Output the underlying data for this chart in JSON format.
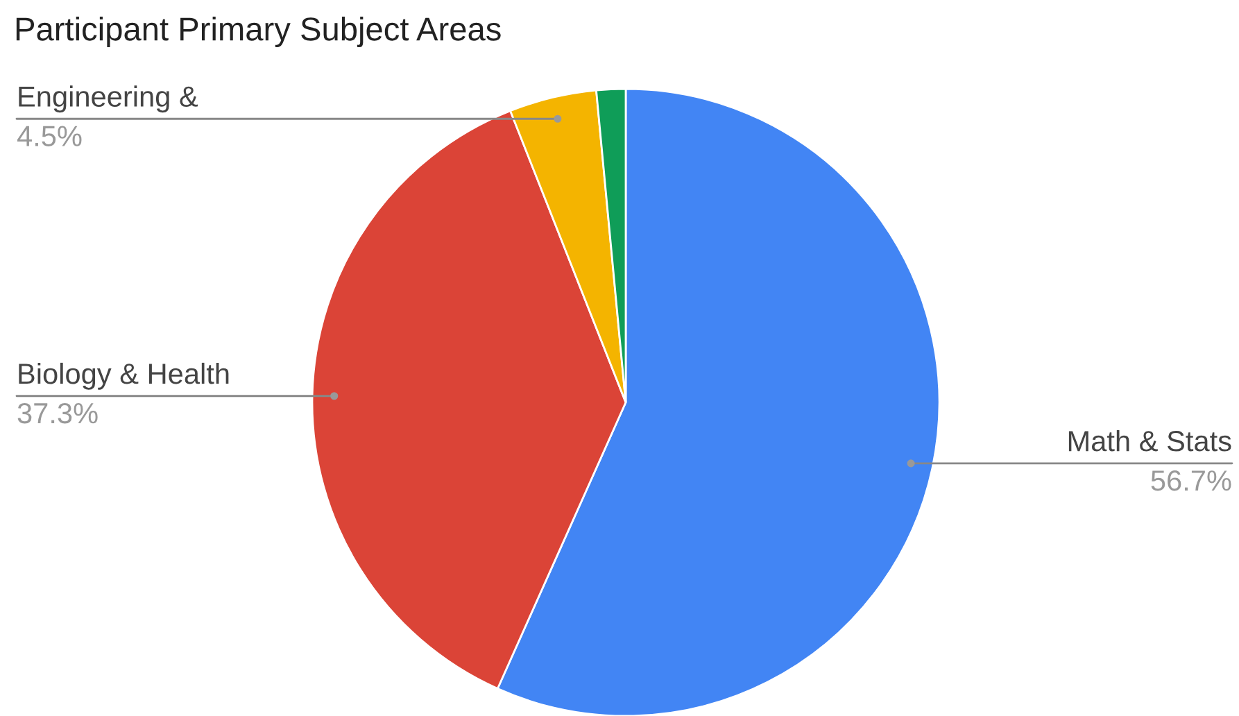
{
  "chart_data": {
    "type": "pie",
    "title": "Participant Primary Subject Areas",
    "categories": [
      "Math & Stats",
      "Biology & Health",
      "Engineering &",
      null
    ],
    "values": [
      56.7,
      37.3,
      4.5,
      1.5
    ],
    "colors": [
      "#4285f4",
      "#db4437",
      "#f4b400",
      "#0f9d58"
    ],
    "value_labels": [
      "56.7%",
      "37.3%",
      "4.5%",
      null
    ],
    "legend": false
  }
}
